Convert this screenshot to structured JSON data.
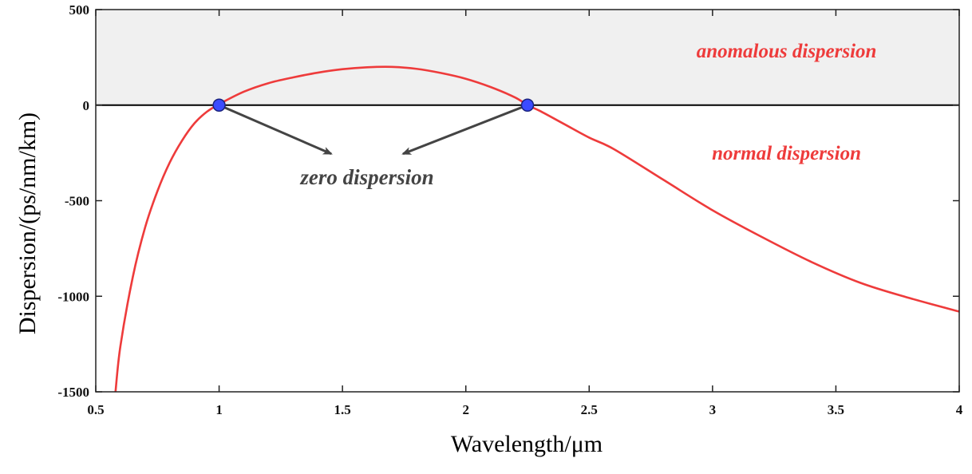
{
  "chart_data": {
    "type": "line",
    "title": "",
    "xlabel": "Wavelength/μm",
    "ylabel": "Dispersion/(ps/nm/km)",
    "xlim": [
      0.5,
      4
    ],
    "ylim": [
      -1500,
      500
    ],
    "xticks": [
      "0.5",
      "1",
      "1.5",
      "2",
      "2.5",
      "3",
      "3.5",
      "4"
    ],
    "yticks": [
      "500",
      "0",
      "-500",
      "-1000",
      "-1500"
    ],
    "grid": false,
    "series": [
      {
        "name": "Dispersion",
        "color": "#ee3b3b",
        "x": [
          0.58,
          0.6,
          0.65,
          0.7,
          0.75,
          0.8,
          0.85,
          0.9,
          0.95,
          1.0,
          1.1,
          1.2,
          1.3,
          1.4,
          1.5,
          1.6,
          1.7,
          1.8,
          1.9,
          2.0,
          2.1,
          2.2,
          2.25,
          2.3,
          2.4,
          2.5,
          2.6,
          2.8,
          3.0,
          3.2,
          3.4,
          3.6,
          3.8,
          4.0
        ],
        "y": [
          -1500,
          -1260,
          -900,
          -640,
          -450,
          -300,
          -185,
          -95,
          -35,
          5,
          70,
          115,
          145,
          170,
          188,
          198,
          200,
          190,
          168,
          138,
          95,
          40,
          0,
          -30,
          -100,
          -170,
          -230,
          -390,
          -550,
          -690,
          -820,
          -930,
          -1010,
          -1080
        ]
      }
    ],
    "points": [
      {
        "x": 1.0,
        "y": 0,
        "color": "#3b4bff"
      },
      {
        "x": 2.25,
        "y": 0,
        "color": "#3b4bff"
      }
    ],
    "regions": [
      {
        "label": "anomalous dispersion",
        "y_range": [
          0,
          500
        ],
        "fill": "#f0f0f0"
      },
      {
        "label": "normal dispersion",
        "y_range": [
          -1500,
          0
        ]
      }
    ],
    "annotations": [
      {
        "text": "zero dispersion",
        "x": 1.6,
        "y": -380,
        "arrows_to": [
          {
            "x": 1.0,
            "y": 0
          },
          {
            "x": 2.25,
            "y": 0
          }
        ]
      }
    ],
    "region_label_positions": [
      {
        "x": 3.3,
        "y": 250
      },
      {
        "x": 3.3,
        "y": -285
      }
    ],
    "colors": {
      "curve": "#ee3b3b",
      "zero_point": "#3b4bff",
      "arrow": "#444444",
      "shade": "#f0f0f0"
    }
  }
}
